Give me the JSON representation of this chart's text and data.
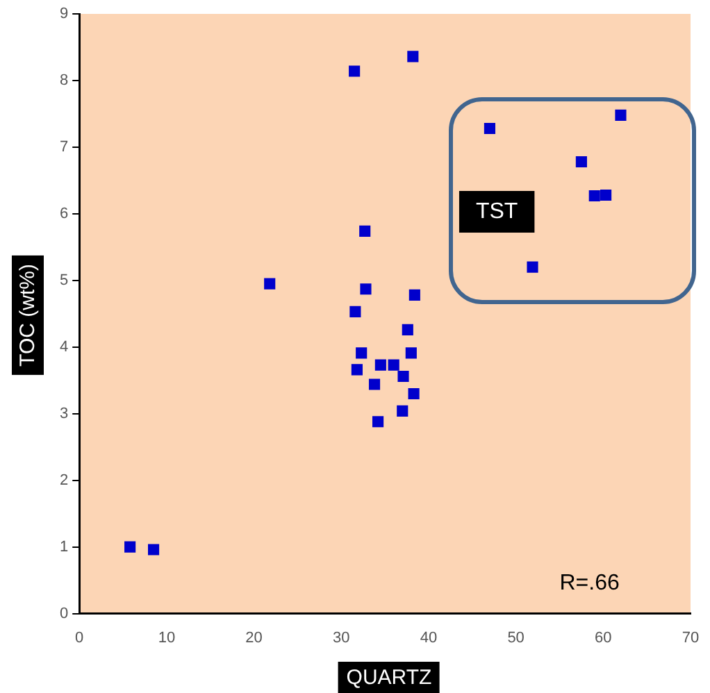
{
  "chart_data": {
    "type": "scatter",
    "xlabel": "QUARTZ",
    "ylabel": "TOC (wt%)",
    "annotations": [
      "TST",
      "R=.66"
    ],
    "x": [
      31.5,
      38.2,
      32.7,
      21.8,
      32.8,
      38.4,
      31.6,
      37.6,
      32.3,
      38.0,
      34.5,
      36.0,
      31.8,
      37.1,
      33.8,
      38.3,
      37.0,
      34.2,
      5.8,
      8.5,
      47,
      62,
      57.5,
      59,
      60.3,
      51.9
    ],
    "values": [
      8.14,
      8.36,
      5.74,
      4.95,
      4.87,
      4.78,
      4.53,
      4.26,
      3.91,
      3.91,
      3.73,
      3.73,
      3.66,
      3.56,
      3.44,
      3.3,
      3.04,
      2.88,
      1.0,
      0.96,
      7.28,
      7.48,
      6.78,
      6.27,
      6.28,
      5.2
    ],
    "color": "#0000cc",
    "marker": "square",
    "grid": false,
    "legend": false,
    "xlim": [
      0,
      70
    ],
    "xticks": [
      0,
      10,
      20,
      30,
      40,
      50,
      60,
      70
    ],
    "ylim": [
      0,
      9
    ],
    "yticks": [
      0,
      1,
      2,
      3,
      4,
      5,
      6,
      7,
      8,
      9
    ]
  }
}
